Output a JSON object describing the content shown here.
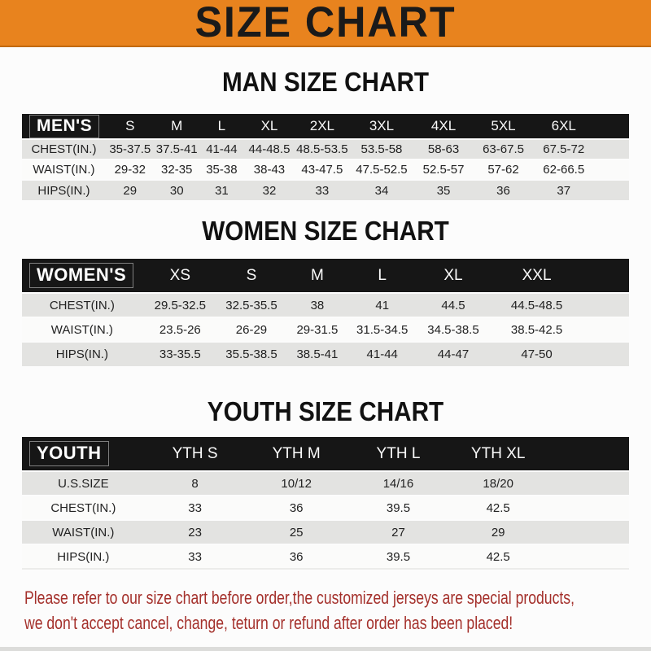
{
  "page": {
    "title": "SIZE CHART"
  },
  "colors": {
    "orange": "#E8831E",
    "band": "#161616",
    "shade": "#E3E3E1",
    "page-bg": "#FCFCFC",
    "red": "#A4302B"
  },
  "sections": [
    {
      "title": "MAN SIZE CHART",
      "header_label": "MEN'S",
      "columns": [
        "S",
        "M",
        "L",
        "XL",
        "2XL",
        "3XL",
        "4XL",
        "5XL",
        "6XL"
      ],
      "rows": [
        {
          "label": "CHEST(IN.)",
          "values": [
            "35-37.5",
            "37.5-41",
            "41-44",
            "44-48.5",
            "48.5-53.5",
            "53.5-58",
            "58-63",
            "63-67.5",
            "67.5-72"
          ]
        },
        {
          "label": "WAIST(IN.)",
          "values": [
            "29-32",
            "32-35",
            "35-38",
            "38-43",
            "43-47.5",
            "47.5-52.5",
            "52.5-57",
            "57-62",
            "62-66.5"
          ]
        },
        {
          "label": "HIPS(IN.)",
          "values": [
            "29",
            "30",
            "31",
            "32",
            "33",
            "34",
            "35",
            "36",
            "37"
          ]
        }
      ]
    },
    {
      "title": "WOMEN SIZE CHART",
      "header_label": "WOMEN'S",
      "columns": [
        "XS",
        "S",
        "M",
        "L",
        "XL",
        "XXL"
      ],
      "rows": [
        {
          "label": "CHEST(IN.)",
          "values": [
            "29.5-32.5",
            "32.5-35.5",
            "38",
            "41",
            "44.5",
            "44.5-48.5"
          ]
        },
        {
          "label": "WAIST(IN.)",
          "values": [
            "23.5-26",
            "26-29",
            "29-31.5",
            "31.5-34.5",
            "34.5-38.5",
            "38.5-42.5"
          ]
        },
        {
          "label": "HIPS(IN.)",
          "values": [
            "33-35.5",
            "35.5-38.5",
            "38.5-41",
            "41-44",
            "44-47",
            "47-50"
          ]
        }
      ]
    },
    {
      "title": "YOUTH SIZE CHART",
      "header_label": "YOUTH",
      "columns": [
        "YTH S",
        "YTH M",
        "YTH L",
        "YTH XL"
      ],
      "rows": [
        {
          "label": "U.S.SIZE",
          "values": [
            "8",
            "10/12",
            "14/16",
            "18/20"
          ]
        },
        {
          "label": "CHEST(IN.)",
          "values": [
            "33",
            "36",
            "39.5",
            "42.5"
          ]
        },
        {
          "label": "WAIST(IN.)",
          "values": [
            "23",
            "25",
            "27",
            "29"
          ]
        },
        {
          "label": "HIPS(IN.)",
          "values": [
            "33",
            "36",
            "39.5",
            "42.5"
          ]
        }
      ]
    }
  ],
  "footer": {
    "line1": "Please refer to our size chart before order,the customized jerseys are special products,",
    "line2": "we don't accept cancel, change, teturn or refund after order has been placed!"
  }
}
